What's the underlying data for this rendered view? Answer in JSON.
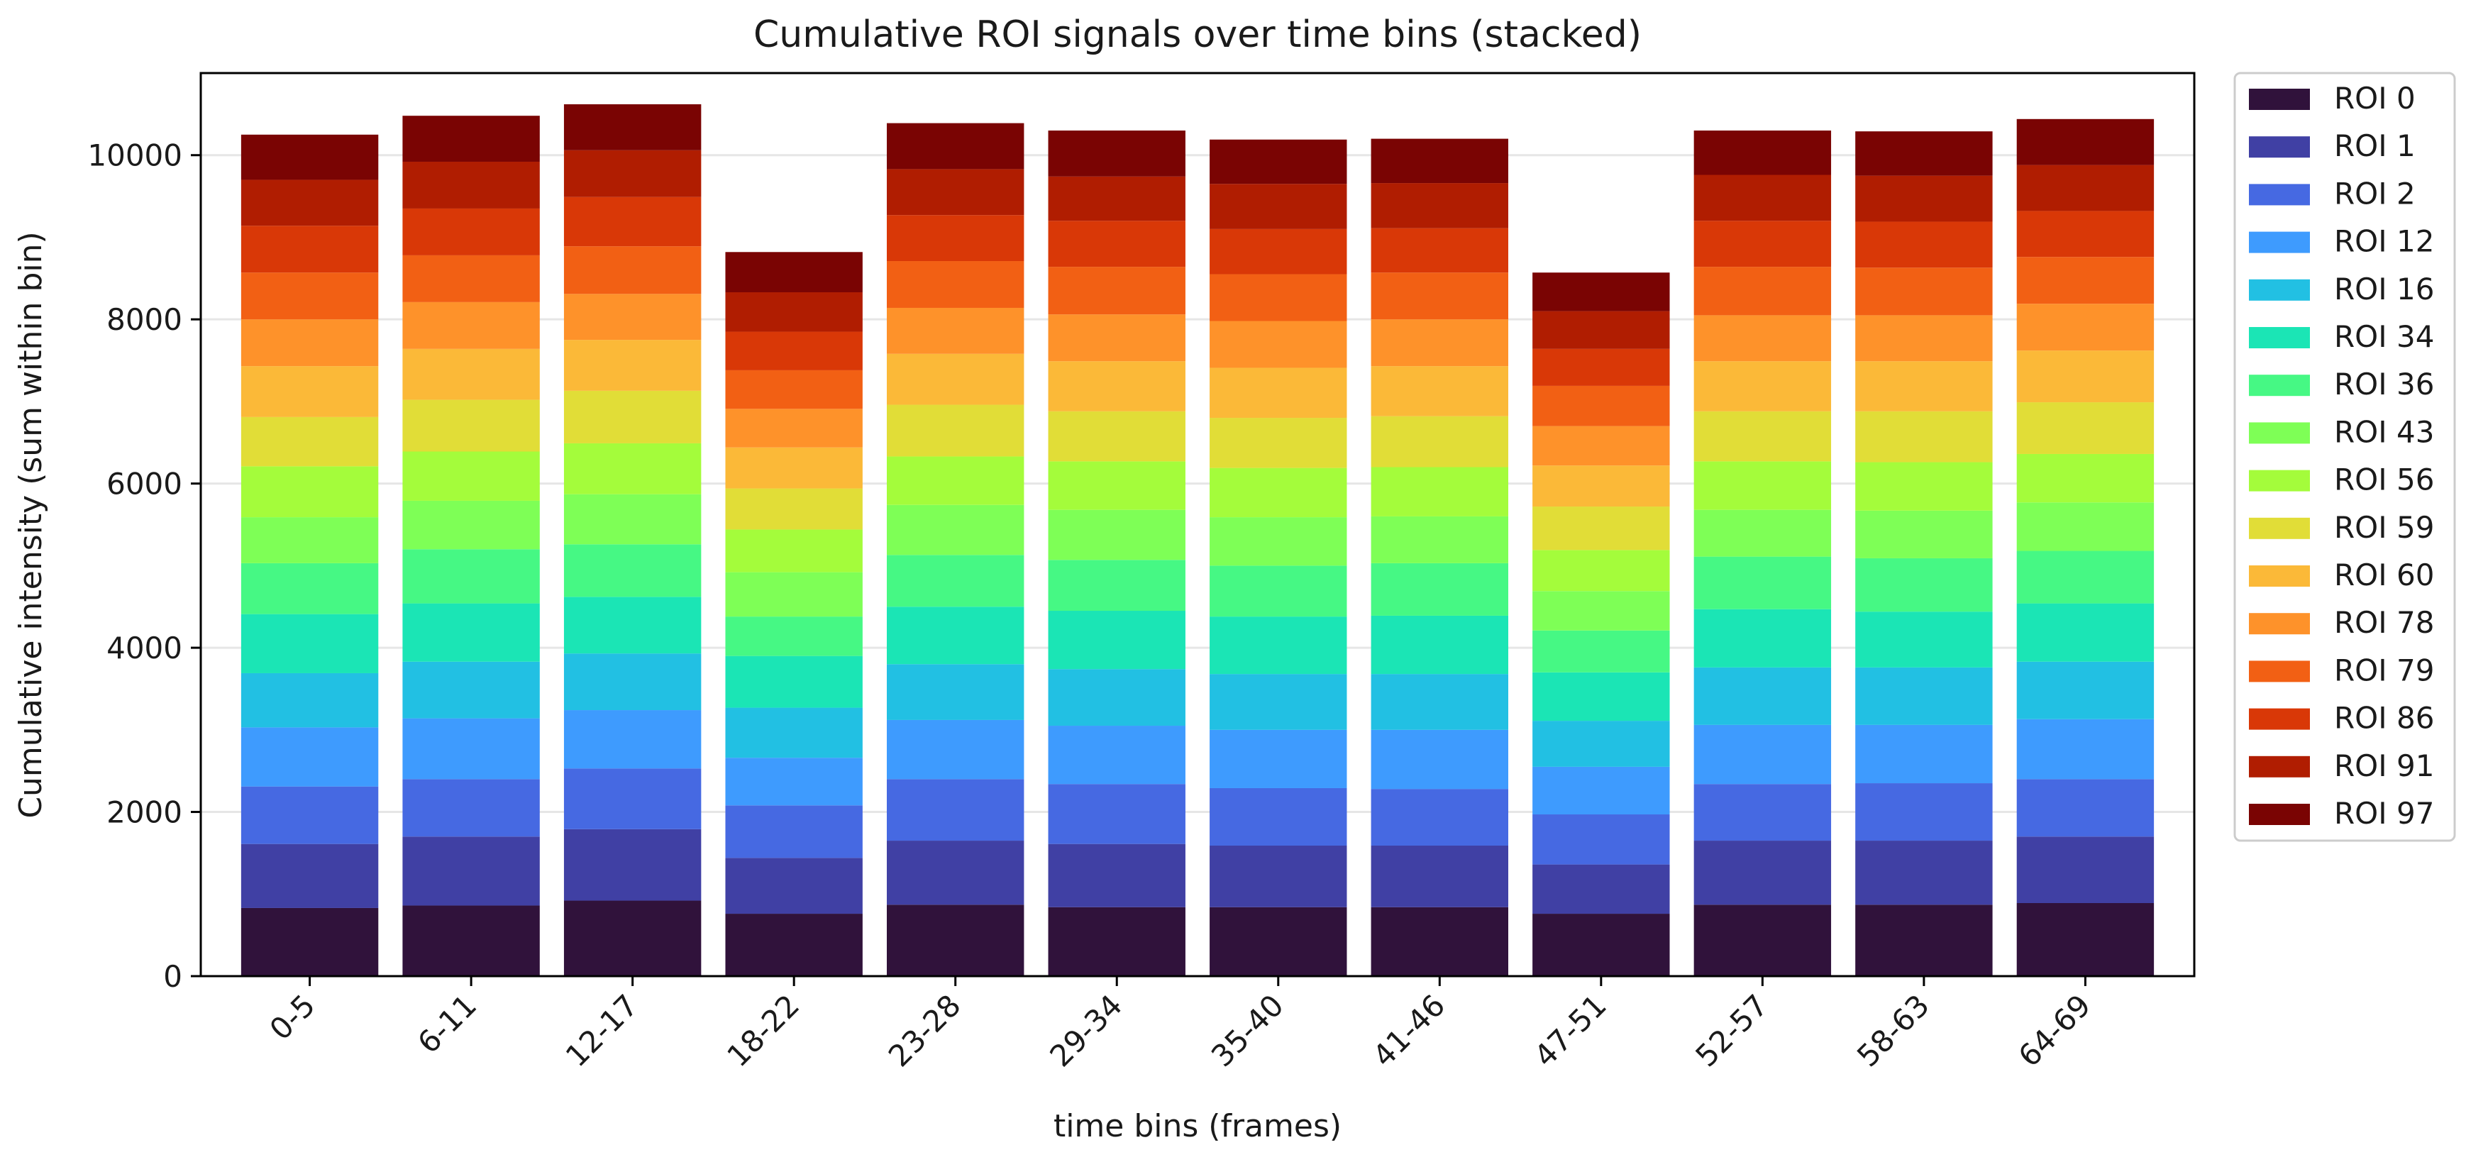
{
  "chart_data": {
    "type": "bar",
    "stacked": true,
    "title": "Cumulative ROI signals over time bins (stacked)",
    "xlabel": "time bins (frames)",
    "ylabel": "Cumulative intensity (sum within bin)",
    "ylim": [
      0,
      11000
    ],
    "yticks": [
      0,
      2000,
      4000,
      6000,
      8000,
      10000
    ],
    "grid": "horizontal",
    "legend_position": "outside right",
    "categories": [
      "0-5",
      "6-11",
      "12-17",
      "18-22",
      "23-28",
      "29-34",
      "35-40",
      "41-46",
      "47-51",
      "52-57",
      "58-63",
      "64-69"
    ],
    "series": [
      {
        "name": "ROI 0",
        "color": "#30123b",
        "values": [
          830,
          860,
          920,
          760,
          870,
          840,
          840,
          840,
          760,
          870,
          870,
          890
        ]
      },
      {
        "name": "ROI 1",
        "color": "#4040a4",
        "values": [
          780,
          840,
          870,
          680,
          780,
          770,
          750,
          750,
          600,
          780,
          780,
          810
        ]
      },
      {
        "name": "ROI 2",
        "color": "#4669e2",
        "values": [
          700,
          700,
          740,
          640,
          750,
          730,
          700,
          690,
          610,
          690,
          700,
          700
        ]
      },
      {
        "name": "ROI 12",
        "color": "#3e9bfe",
        "values": [
          720,
          740,
          710,
          580,
          720,
          710,
          710,
          720,
          580,
          720,
          710,
          730
        ]
      },
      {
        "name": "ROI 16",
        "color": "#22c0e3",
        "values": [
          660,
          690,
          690,
          610,
          680,
          690,
          680,
          680,
          560,
          700,
          700,
          700
        ]
      },
      {
        "name": "ROI 34",
        "color": "#1be5b5",
        "values": [
          720,
          710,
          690,
          630,
          700,
          710,
          700,
          710,
          590,
          710,
          680,
          710
        ]
      },
      {
        "name": "ROI 36",
        "color": "#46f884",
        "values": [
          620,
          660,
          640,
          480,
          630,
          620,
          620,
          640,
          510,
          640,
          650,
          640
        ]
      },
      {
        "name": "ROI 43",
        "color": "#7eff56",
        "values": [
          560,
          590,
          610,
          540,
          610,
          610,
          590,
          570,
          480,
          570,
          580,
          590
        ]
      },
      {
        "name": "ROI 56",
        "color": "#a4fc3b",
        "values": [
          620,
          600,
          620,
          520,
          590,
          590,
          600,
          600,
          500,
          590,
          590,
          590
        ]
      },
      {
        "name": "ROI 59",
        "color": "#e1dd37",
        "values": [
          600,
          630,
          640,
          500,
          630,
          610,
          610,
          620,
          530,
          610,
          620,
          630
        ]
      },
      {
        "name": "ROI 60",
        "color": "#fbb938",
        "values": [
          620,
          620,
          620,
          500,
          620,
          610,
          610,
          610,
          500,
          610,
          610,
          630
        ]
      },
      {
        "name": "ROI 78",
        "color": "#fe922a",
        "values": [
          570,
          570,
          560,
          470,
          560,
          570,
          570,
          570,
          480,
          560,
          560,
          570
        ]
      },
      {
        "name": "ROI 79",
        "color": "#f26014",
        "values": [
          570,
          570,
          580,
          470,
          570,
          580,
          570,
          570,
          490,
          590,
          580,
          570
        ]
      },
      {
        "name": "ROI 86",
        "color": "#d93807",
        "values": [
          570,
          570,
          600,
          470,
          560,
          560,
          550,
          540,
          450,
          560,
          560,
          560
        ]
      },
      {
        "name": "ROI 91",
        "color": "#b01d01",
        "values": [
          560,
          570,
          570,
          480,
          560,
          540,
          550,
          550,
          460,
          560,
          560,
          560
        ]
      },
      {
        "name": "ROI 97",
        "color": "#7a0403",
        "values": [
          550,
          560,
          560,
          490,
          560,
          560,
          540,
          540,
          470,
          540,
          540,
          560
        ]
      }
    ]
  }
}
